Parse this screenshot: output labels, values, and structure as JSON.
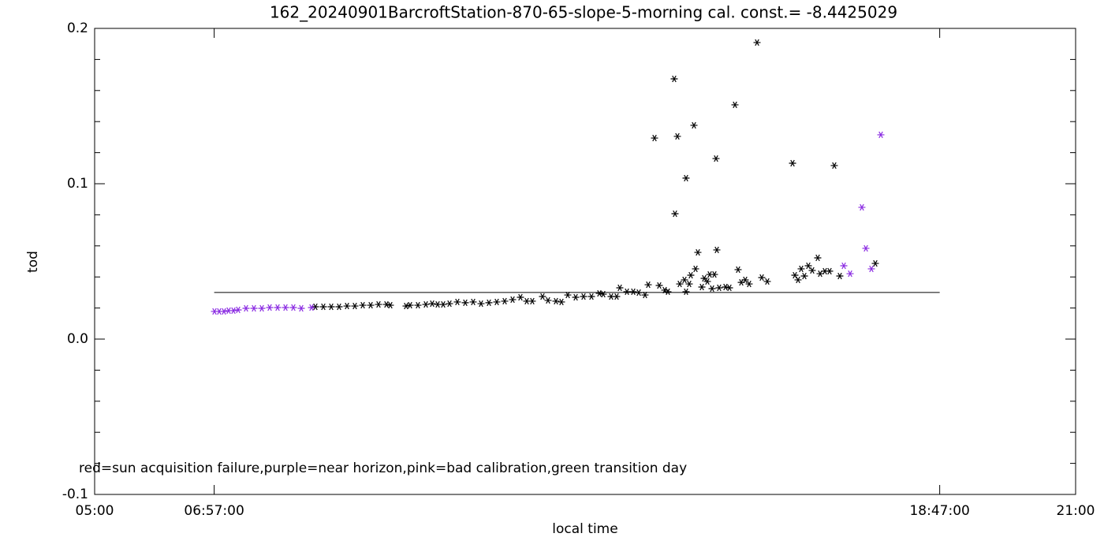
{
  "chart_data": {
    "type": "scatter",
    "title": "162_20240901BarcroftStation-870-65-slope-5-morning cal. const.= -8.4425029",
    "xlabel": "local time",
    "ylabel": "tod",
    "annotation": "red=sun acquisition failure,purple=near horizon,pink=bad calibration,green transition day",
    "xlim": [
      5,
      21
    ],
    "ylim": [
      -0.1,
      0.2
    ],
    "xticks": [
      {
        "value": 5,
        "label": "05:00"
      },
      {
        "value": 6.95,
        "label": "06:57:00"
      },
      {
        "value": 18.7833,
        "label": "18:47:00"
      },
      {
        "value": 21,
        "label": "21:00"
      }
    ],
    "yticks": [
      -0.1,
      {
        "value": 0,
        "label": "0.0"
      },
      0.1,
      0.2
    ],
    "yminorticks": [
      -0.08,
      -0.06,
      -0.04,
      -0.02,
      0.02,
      0.04,
      0.06,
      0.08,
      0.12,
      0.14,
      0.16,
      0.18
    ],
    "hline": {
      "y": 0.03,
      "x": [
        6.95,
        18.7833
      ],
      "color": "#000000"
    },
    "series": [
      {
        "color": "#000000",
        "x": [
          8.601,
          8.73,
          8.859,
          8.987,
          9.116,
          9.244,
          9.373,
          9.502,
          9.63,
          9.759,
          9.823,
          10.08,
          10.145,
          10.273,
          10.402,
          10.505,
          10.595,
          10.685,
          10.788,
          10.916,
          11.045,
          11.174,
          11.302,
          11.431,
          11.559,
          11.688,
          11.817,
          11.945,
          12.048,
          12.138,
          12.305,
          12.395,
          12.524,
          12.614,
          12.717,
          12.846,
          12.974,
          13.103,
          13.232,
          13.296,
          13.424,
          13.514,
          13.566,
          13.682,
          13.785,
          13.875,
          13.977,
          14.029,
          14.132,
          14.209,
          14.299,
          14.35,
          14.453,
          14.466,
          14.505,
          14.543,
          14.621,
          14.646,
          14.646,
          14.698,
          14.723,
          14.775,
          14.801,
          14.839,
          14.904,
          14.942,
          14.994,
          15.032,
          15.071,
          15.109,
          15.135,
          15.148,
          15.186,
          15.289,
          15.354,
          15.444,
          15.495,
          15.547,
          15.611,
          15.675,
          15.804,
          15.881,
          15.971,
          16.383,
          16.421,
          16.473,
          16.524,
          16.576,
          16.64,
          16.704,
          16.794,
          16.833,
          16.91,
          16.987,
          17.064,
          17.154,
          17.733
        ],
        "values": [
          0.0208,
          0.0208,
          0.0208,
          0.0208,
          0.0213,
          0.0213,
          0.0218,
          0.0218,
          0.0223,
          0.0223,
          0.0218,
          0.0213,
          0.0218,
          0.0218,
          0.0223,
          0.0228,
          0.0223,
          0.0223,
          0.0228,
          0.0239,
          0.0234,
          0.0239,
          0.0228,
          0.0234,
          0.0239,
          0.0244,
          0.0254,
          0.0269,
          0.0244,
          0.0244,
          0.0274,
          0.0249,
          0.0244,
          0.0239,
          0.0284,
          0.0269,
          0.0274,
          0.0274,
          0.0294,
          0.0289,
          0.0274,
          0.0274,
          0.033,
          0.0305,
          0.0305,
          0.0299,
          0.0284,
          0.035,
          0.1294,
          0.0345,
          0.0315,
          0.0305,
          0.1675,
          0.0807,
          0.1305,
          0.0355,
          0.0381,
          0.1036,
          0.0305,
          0.0355,
          0.0411,
          0.1376,
          0.0452,
          0.0558,
          0.0335,
          0.0391,
          0.0371,
          0.0416,
          0.0325,
          0.0416,
          0.1162,
          0.0574,
          0.033,
          0.0335,
          0.033,
          0.1508,
          0.0447,
          0.0365,
          0.0381,
          0.0355,
          0.1909,
          0.0396,
          0.0371,
          0.1132,
          0.0411,
          0.0381,
          0.0452,
          0.0406,
          0.0472,
          0.0442,
          0.0523,
          0.0421,
          0.0437,
          0.0437,
          0.1117,
          0.0406,
          0.0487
        ]
      },
      {
        "color": "#8a2be2",
        "x": [
          6.955,
          7.032,
          7.109,
          7.186,
          7.264,
          7.341,
          7.469,
          7.598,
          7.727,
          7.855,
          7.984,
          8.113,
          8.241,
          8.37,
          8.537,
          17.219,
          17.322,
          17.514,
          17.579,
          17.669,
          17.823
        ],
        "values": [
          0.0178,
          0.0178,
          0.0178,
          0.0183,
          0.0183,
          0.0188,
          0.0198,
          0.0198,
          0.0198,
          0.0203,
          0.0203,
          0.0203,
          0.0203,
          0.0198,
          0.0203,
          0.0472,
          0.0421,
          0.0848,
          0.0584,
          0.0452,
          0.1315
        ]
      }
    ]
  }
}
